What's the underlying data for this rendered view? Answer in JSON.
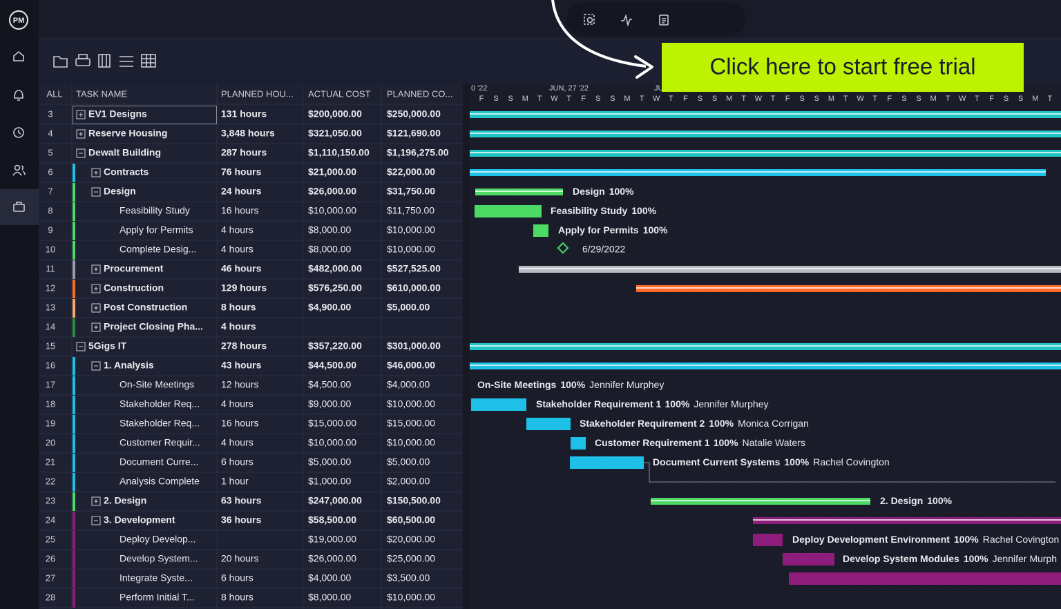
{
  "app": {
    "logo": "PM"
  },
  "cta": "Click here to start free trial",
  "table": {
    "headers": [
      "ALL",
      "TASK NAME",
      "PLANNED HOU...",
      "ACTUAL COST",
      "PLANNED CO..."
    ],
    "rows": [
      [
        3,
        "EV1 Designs",
        "131 hours",
        "$200,000.00",
        "$250,000.00"
      ],
      [
        4,
        "Reserve Housing",
        "3,848 hours",
        "$321,050.00",
        "$121,690.00"
      ],
      [
        5,
        "Dewalt Building",
        "287 hours",
        "$1,110,150.00",
        "$1,196,275.00"
      ],
      [
        6,
        "Contracts",
        "76 hours",
        "$21,000.00",
        "$22,000.00"
      ],
      [
        7,
        "Design",
        "24 hours",
        "$26,000.00",
        "$31,750.00"
      ],
      [
        8,
        "Feasibility Study",
        "16 hours",
        "$10,000.00",
        "$11,750.00"
      ],
      [
        9,
        "Apply for Permits",
        "4 hours",
        "$8,000.00",
        "$10,000.00"
      ],
      [
        10,
        "Complete Desig...",
        "4 hours",
        "$8,000.00",
        "$10,000.00"
      ],
      [
        11,
        "Procurement",
        "46 hours",
        "$482,000.00",
        "$527,525.00"
      ],
      [
        12,
        "Construction",
        "129 hours",
        "$576,250.00",
        "$610,000.00"
      ],
      [
        13,
        "Post Construction",
        "8 hours",
        "$4,900.00",
        "$5,000.00"
      ],
      [
        14,
        "Project Closing Pha...",
        "4 hours",
        null,
        null
      ],
      [
        15,
        "5Gigs IT",
        "278 hours",
        "$357,220.00",
        "$301,000.00"
      ],
      [
        16,
        "1. Analysis",
        "43 hours",
        "$44,500.00",
        "$46,000.00"
      ],
      [
        17,
        "On-Site Meetings",
        "12 hours",
        "$4,500.00",
        "$4,000.00"
      ],
      [
        18,
        "Stakeholder Req...",
        "4 hours",
        "$9,000.00",
        "$10,000.00"
      ],
      [
        19,
        "Stakeholder Req...",
        "16 hours",
        "$15,000.00",
        "$15,000.00"
      ],
      [
        20,
        "Customer Requir...",
        "4 hours",
        "$10,000.00",
        "$10,000.00"
      ],
      [
        21,
        "Document Curre...",
        "6 hours",
        "$5,000.00",
        "$5,000.00"
      ],
      [
        22,
        "Analysis Complete",
        "1 hour",
        "$1,000.00",
        "$2,000.00"
      ],
      [
        23,
        "2. Design",
        "63 hours",
        "$247,000.00",
        "$150,500.00"
      ],
      [
        24,
        "3. Development",
        "36 hours",
        "$58,500.00",
        "$60,500.00"
      ],
      [
        25,
        "Deploy Develop...",
        null,
        "$19,000.00",
        "$20,000.00"
      ],
      [
        26,
        "Develop System...",
        "20 hours",
        "$26,000.00",
        "$25,000.00"
      ],
      [
        27,
        "Integrate Syste...",
        "6 hours",
        "$4,000.00",
        "$3,500.00"
      ],
      [
        28,
        "Perform Initial T...",
        "8 hours",
        "$8,000.00",
        "$10,000.00"
      ]
    ]
  },
  "gantt": {
    "months": [
      "0 '22",
      "JUN, 27 '22",
      "JU"
    ],
    "days": [
      "F",
      "S",
      "S",
      "M",
      "T",
      "W",
      "T",
      "F",
      "S",
      "S",
      "M",
      "T",
      "W",
      "T",
      "F",
      "S",
      "S",
      "M",
      "T",
      "W",
      "T",
      "F",
      "S",
      "S",
      "M",
      "T",
      "W",
      "T",
      "F",
      "S",
      "S",
      "M",
      "T",
      "W",
      "T",
      "F",
      "S",
      "S",
      "M",
      "T"
    ],
    "labels": [
      {
        "task": "Design",
        "percent": "100%"
      },
      {
        "task": "Feasibility Study",
        "percent": "100%"
      },
      {
        "task": "Apply for Permits",
        "percent": "100%"
      },
      {
        "task": "On-Site Meetings",
        "percent": "100%",
        "assignee": "Jennifer Murphey"
      },
      {
        "task": "Stakeholder Requirement 1",
        "percent": "100%",
        "assignee": "Jennifer Murphey"
      },
      {
        "task": "Stakeholder Requirement 2",
        "percent": "100%",
        "assignee": "Monica Corrigan"
      },
      {
        "task": "Customer Requirement 1",
        "percent": "100%",
        "assignee": "Natalie Waters"
      },
      {
        "task": "Document Current Systems",
        "percent": "100%",
        "assignee": "Rachel Covington"
      },
      {
        "task": "2. Design",
        "percent": "100%"
      },
      {
        "task": "Deploy Development Environment",
        "percent": "100%",
        "assignee": "Rachel Covington"
      },
      {
        "task": "Develop System Modules",
        "percent": "100%",
        "assignee": "Jennifer Murph"
      }
    ],
    "milestone_date": "6/29/2022"
  }
}
